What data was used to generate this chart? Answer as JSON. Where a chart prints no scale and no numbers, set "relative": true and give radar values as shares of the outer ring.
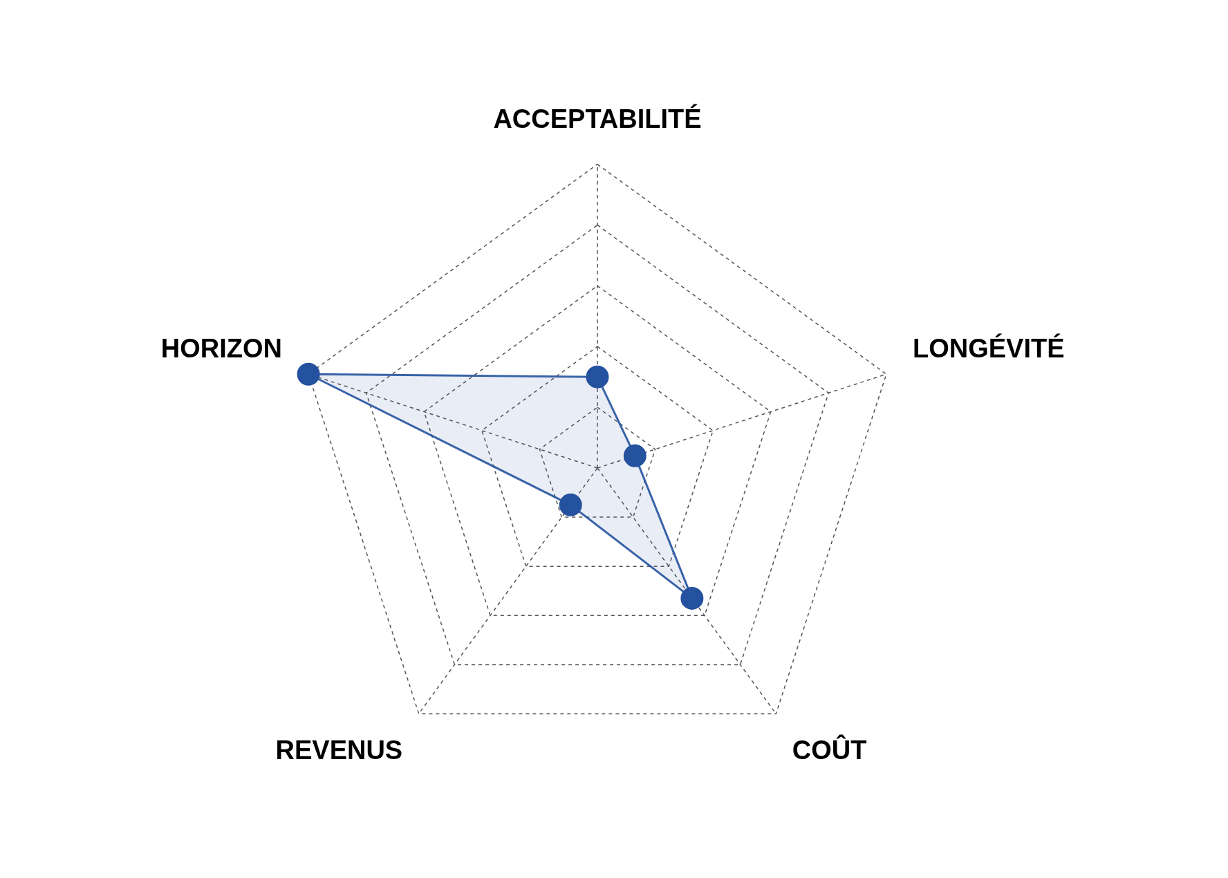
{
  "chart_data": {
    "type": "radar",
    "relative": true,
    "categories": [
      "ACCEPTABILITÉ",
      "LONGÉVITÉ",
      "COÛT",
      "REVENUS",
      "HORIZON"
    ],
    "series": [
      {
        "color": "#24529f",
        "values": [
          0.3,
          0.13,
          0.53,
          0.15,
          1
        ]
      }
    ],
    "grid": true,
    "marker": "circle",
    "line_style": "solid",
    "legend": false
  }
}
